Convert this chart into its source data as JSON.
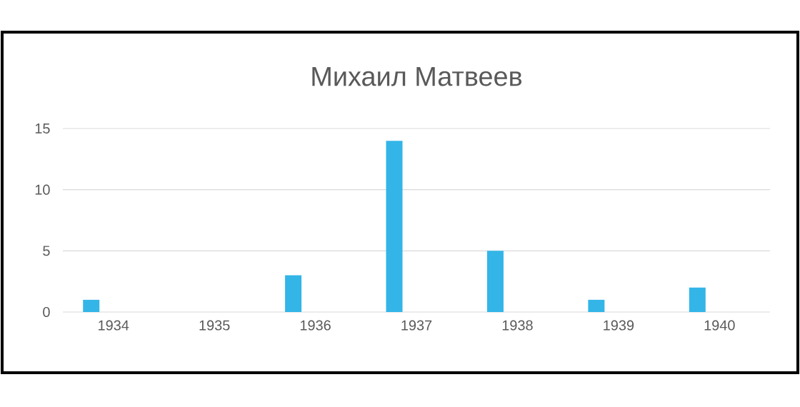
{
  "chart_data": {
    "type": "bar",
    "title": "Михаил Матвеев",
    "categories": [
      "1934",
      "1935",
      "1936",
      "1937",
      "1938",
      "1939",
      "1940"
    ],
    "values": [
      1,
      0,
      3,
      14,
      5,
      1,
      2
    ],
    "color": "#33b5e8",
    "ylim": [
      0,
      15
    ],
    "yticks": [
      0,
      5,
      10,
      15
    ],
    "grid": "y"
  }
}
